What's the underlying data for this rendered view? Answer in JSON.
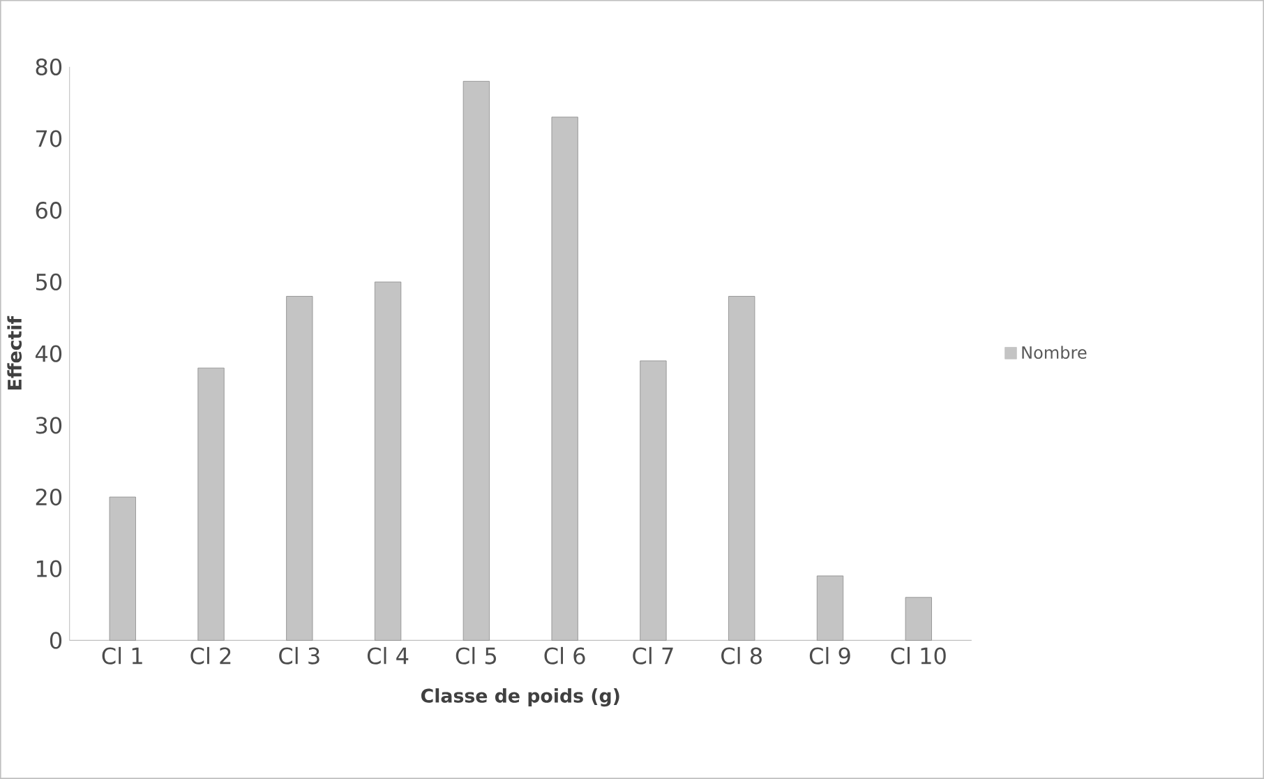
{
  "chart_data": {
    "type": "bar",
    "xlabel": "Classe de poids (g)",
    "ylabel": "Effectif",
    "categories": [
      "Cl 1",
      "Cl 2",
      "Cl 3",
      "Cl 4",
      "Cl 5",
      "Cl 6",
      "Cl 7",
      "Cl 8",
      "Cl 9",
      "Cl 10"
    ],
    "series": [
      {
        "name": "Nombre",
        "color": "#c4c4c4",
        "values": [
          20,
          38,
          48,
          50,
          78,
          73,
          39,
          48,
          9,
          6
        ]
      }
    ],
    "ylim": [
      0,
      80
    ],
    "yticks": [
      0,
      10,
      20,
      30,
      40,
      50,
      60,
      70,
      80
    ],
    "grid": false,
    "legend": "right"
  }
}
